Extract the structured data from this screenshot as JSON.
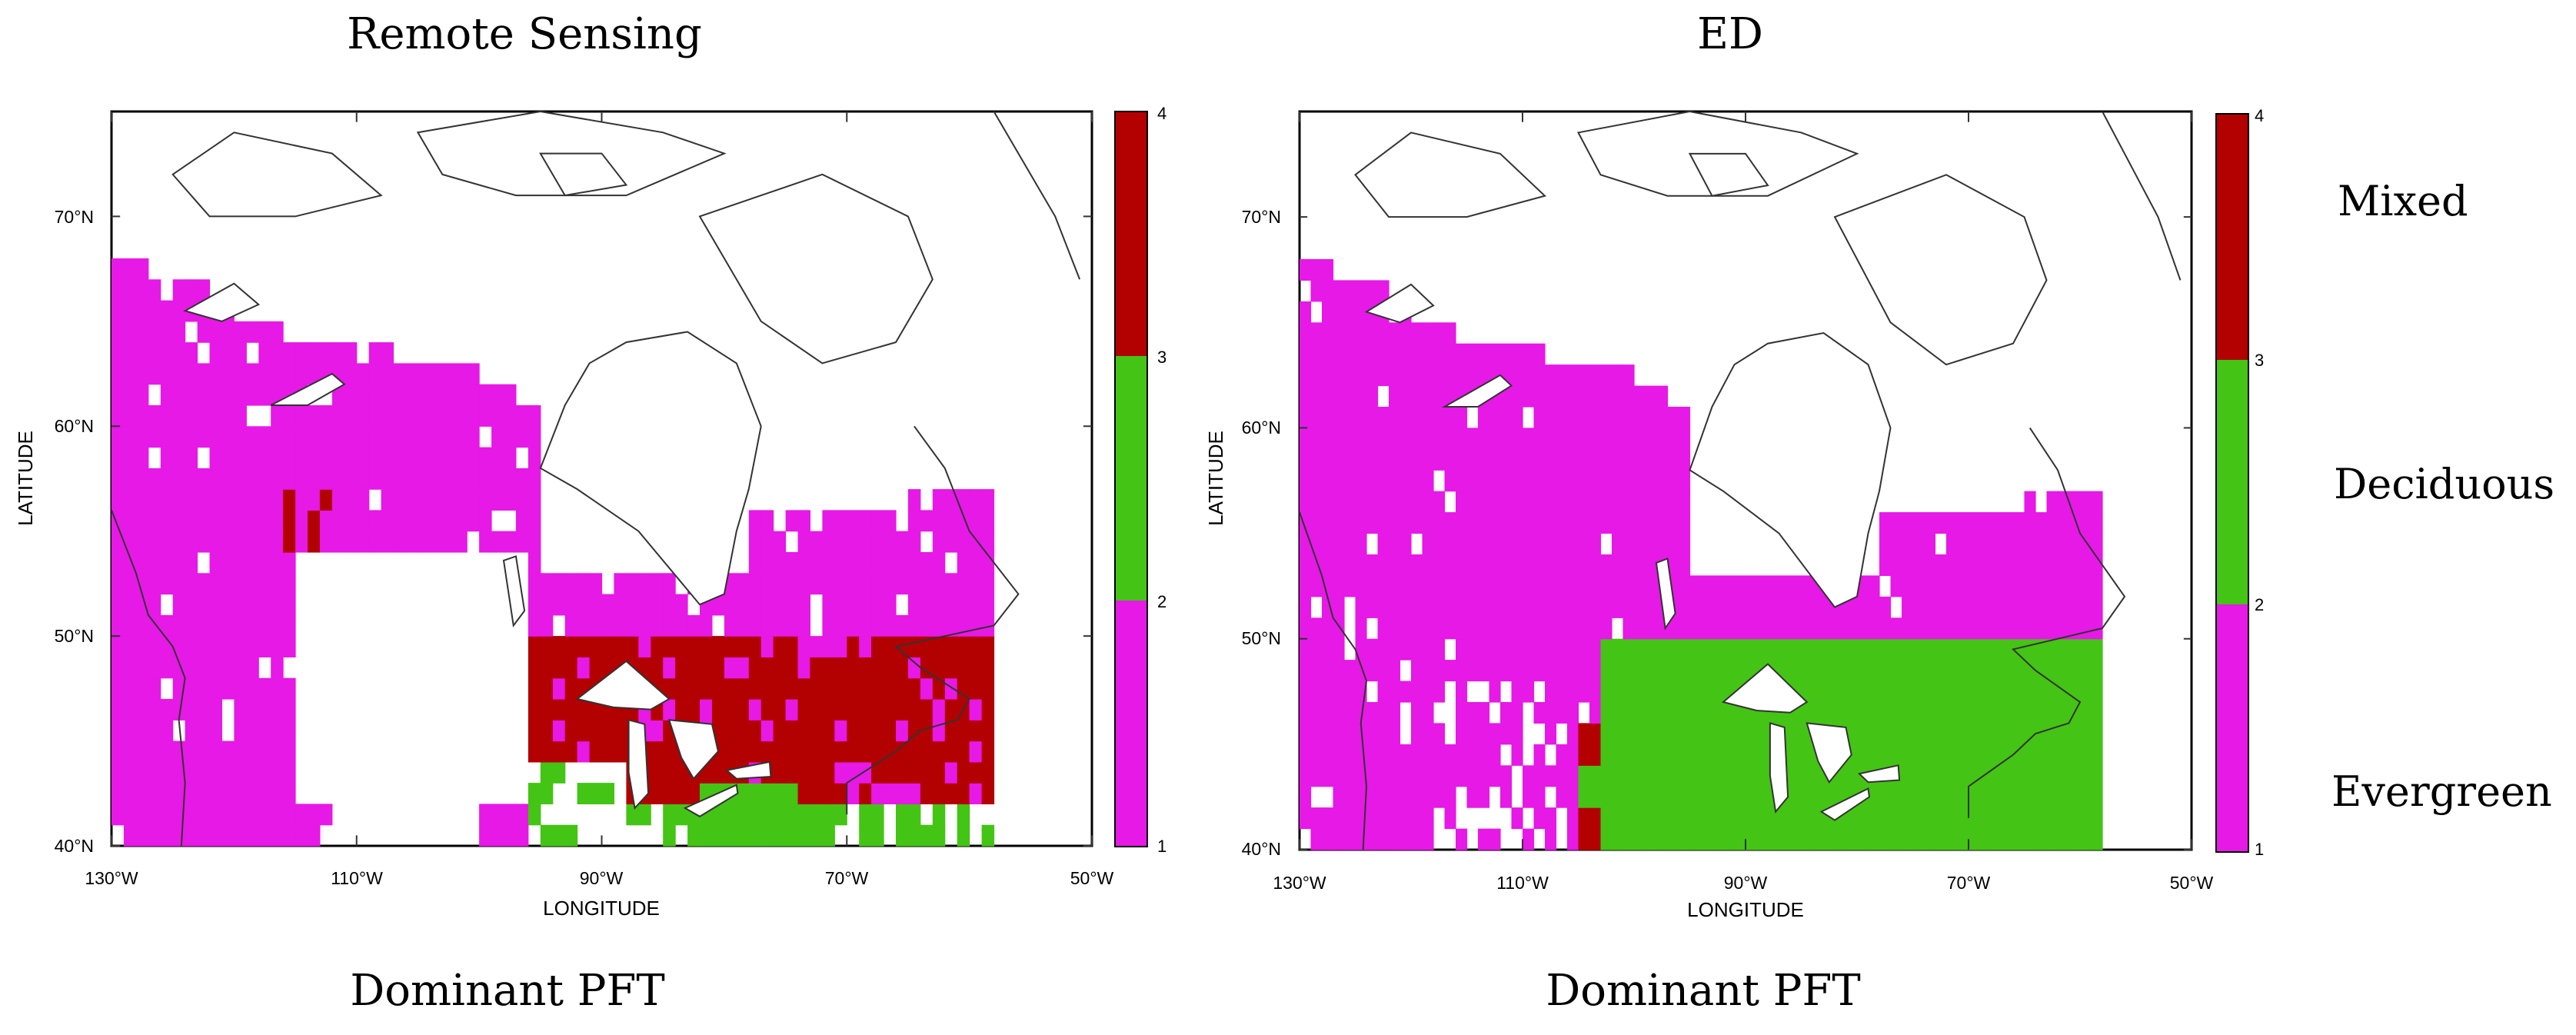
{
  "panels": [
    {
      "title": "Remote Sensing",
      "subtitle": "Dominant PFT",
      "xlabel": "LONGITUDE",
      "ylabel": "LATITUDE",
      "x_ticks": [
        "130°W",
        "110°W",
        "90°W",
        "70°W",
        "50°W"
      ],
      "y_ticks": [
        "40°N",
        "50°N",
        "60°N",
        "70°N"
      ],
      "colorbar_ticks": [
        "1",
        "2",
        "3",
        "4"
      ]
    },
    {
      "title": "ED",
      "subtitle": "Dominant PFT",
      "xlabel": "LONGITUDE",
      "ylabel": "LATITUDE",
      "x_ticks": [
        "130°W",
        "110°W",
        "90°W",
        "70°W",
        "50°W"
      ],
      "y_ticks": [
        "40°N",
        "50°N",
        "60°N",
        "70°N"
      ],
      "colorbar_ticks": [
        "1",
        "2",
        "3",
        "4"
      ]
    }
  ],
  "legend": {
    "classes": [
      {
        "label": "Mixed",
        "color": "#b30000"
      },
      {
        "label": "Deciduous",
        "color": "#44c414"
      },
      {
        "label": "Evergreen",
        "color": "#e619e6"
      }
    ]
  },
  "colors": {
    "evergreen": "#e619e6",
    "deciduous": "#44c414",
    "mixed": "#b30000",
    "coast": "#333333"
  },
  "chart_data": [
    {
      "type": "heatmap",
      "title": "Remote Sensing",
      "xlabel": "LONGITUDE",
      "ylabel": "LATITUDE",
      "xlim": [
        -130,
        -50
      ],
      "ylim": [
        40,
        75
      ],
      "colorbar": {
        "min": 1,
        "max": 4,
        "classes": [
          "Evergreen",
          "Deciduous",
          "Mixed"
        ]
      }
    },
    {
      "type": "heatmap",
      "title": "ED",
      "xlabel": "LONGITUDE",
      "ylabel": "LATITUDE",
      "xlim": [
        -130,
        -50
      ],
      "ylim": [
        40,
        75
      ],
      "colorbar": {
        "min": 1,
        "max": 4,
        "classes": [
          "Evergreen",
          "Deciduous",
          "Mixed"
        ]
      }
    }
  ]
}
